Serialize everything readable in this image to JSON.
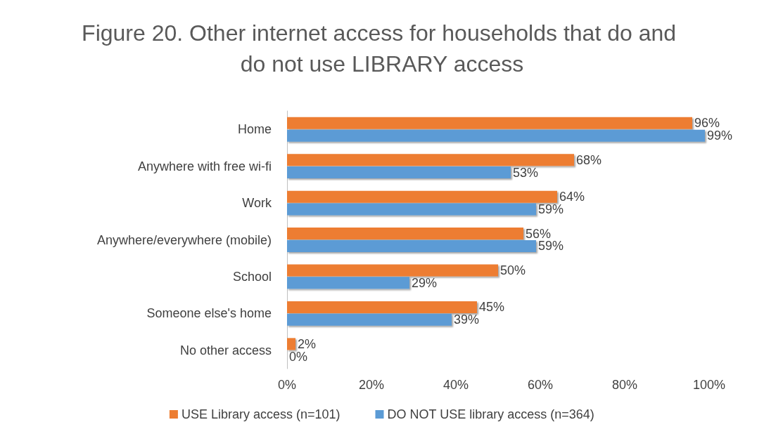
{
  "chart_data": {
    "type": "bar",
    "orientation": "horizontal",
    "title": "Figure 20. Other internet access for households that do and do not use LIBRARY access",
    "categories": [
      "Home",
      "Anywhere with free wi-fi",
      "Work",
      "Anywhere/everywhere (mobile)",
      "School",
      "Someone else's home",
      "No other access"
    ],
    "series": [
      {
        "name": "USE Library access (n=101)",
        "color": "#ed7d31",
        "values": [
          96,
          68,
          64,
          56,
          50,
          45,
          2
        ],
        "value_labels": [
          "96%",
          "68%",
          "64%",
          "56%",
          "50%",
          "45%",
          "2%"
        ]
      },
      {
        "name": "DO NOT USE library access (n=364)",
        "color": "#5b9bd5",
        "values": [
          99,
          53,
          59,
          59,
          29,
          39,
          0
        ],
        "value_labels": [
          "99%",
          "53%",
          "59%",
          "59%",
          "29%",
          "39%",
          "0%"
        ]
      }
    ],
    "xlim": [
      0,
      100
    ],
    "xticks": [
      {
        "value": 0,
        "label": "0%"
      },
      {
        "value": 20,
        "label": "20%"
      },
      {
        "value": 40,
        "label": "40%"
      },
      {
        "value": 60,
        "label": "60%"
      },
      {
        "value": 80,
        "label": "80%"
      },
      {
        "value": 100,
        "label": "100%"
      }
    ],
    "grid": false,
    "legend": "bottom"
  }
}
